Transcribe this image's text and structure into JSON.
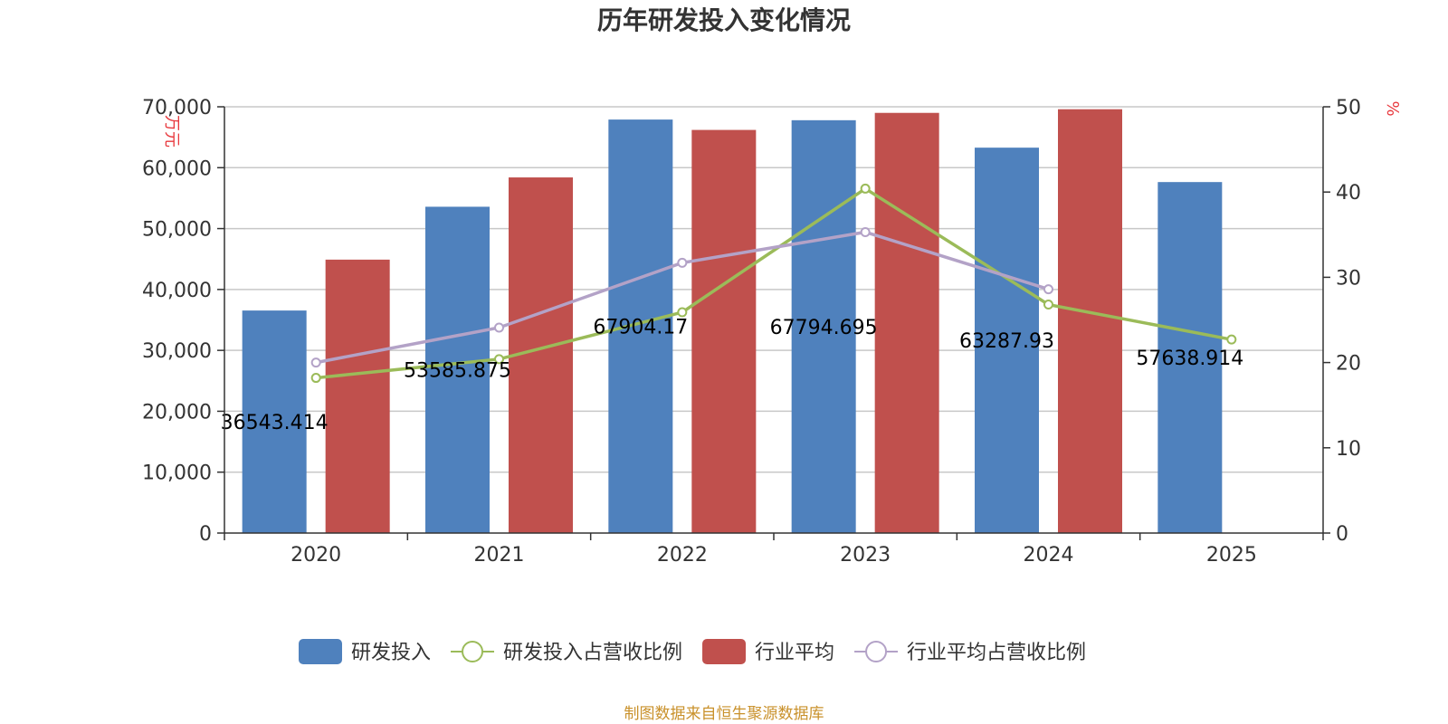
{
  "chart_data": {
    "type": "bar",
    "title": "历年研发投入变化情况",
    "categories": [
      "2020",
      "2021",
      "2022",
      "2023",
      "2024",
      "2025"
    ],
    "y_left": {
      "unit": "万元",
      "min": 0,
      "max": 70000,
      "ticks": [
        0,
        10000,
        20000,
        30000,
        40000,
        50000,
        60000,
        70000
      ],
      "tick_labels": [
        "0",
        "10,000",
        "20,000",
        "30,000",
        "40,000",
        "50,000",
        "60,000",
        "70,000"
      ]
    },
    "y_right": {
      "unit": "%",
      "min": 0,
      "max": 50,
      "ticks": [
        0,
        10,
        20,
        30,
        40,
        50
      ],
      "tick_labels": [
        "0",
        "10",
        "20",
        "30",
        "40",
        "50"
      ]
    },
    "grid": true,
    "legend_position": "bottom",
    "series": [
      {
        "name": "研发投入",
        "type": "bar",
        "axis": "left",
        "color": "#4f81bd",
        "values": [
          36543.414,
          53585.875,
          67904.17,
          67794.695,
          63287.93,
          57638.914
        ],
        "labels": [
          "36543.414",
          "53585.875",
          "67904.17",
          "67794.695",
          "63287.93",
          "57638.914"
        ]
      },
      {
        "name": "研发投入占营收比例",
        "type": "line",
        "axis": "right",
        "color": "#9bbb59",
        "values": [
          18.2,
          20.4,
          25.9,
          40.4,
          26.8,
          22.7
        ]
      },
      {
        "name": "行业平均",
        "type": "bar",
        "axis": "left",
        "color": "#c0504d",
        "values": [
          44900,
          58400,
          66200,
          69000,
          69600,
          null
        ]
      },
      {
        "name": "行业平均占营收比例",
        "type": "line",
        "axis": "right",
        "color": "#b3a2c7",
        "values": [
          20.0,
          24.1,
          31.7,
          35.3,
          28.6,
          null
        ]
      }
    ],
    "source_note": "制图数据来自恒生聚源数据库"
  }
}
